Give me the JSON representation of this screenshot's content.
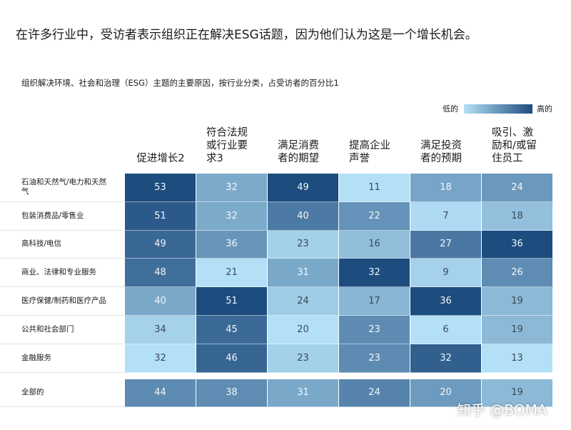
{
  "chart_data": {
    "type": "heatmap",
    "title": "在许多行业中，受访者表示组织正在解决ESG话题，因为他们认为这是一个增长机会。",
    "subtitle": "组织解决环境、社会和治理（ESG）主题的主要原因，按行业分类，占受访者的百分比1",
    "legend": {
      "low_label": "低的",
      "high_label": "高的"
    },
    "low_color": "#b3e0f7",
    "high_color": "#1d4c7e",
    "columns": [
      "促进增长2",
      "符合法规或行业要求3",
      "满足消费者的期望",
      "提高企业声誉",
      "满足投资者的预期",
      "吸引、激励和/或留住员工"
    ],
    "categories": [
      "石油和天然气/电力和天然气",
      "包装消费品/零售业",
      "高科技/电信",
      "商业、法律和专业服务",
      "医疗保健/制药和医疗产品",
      "公共和社会部门",
      "金融服务",
      "全部的"
    ],
    "values": [
      [
        53,
        32,
        49,
        11,
        18,
        24
      ],
      [
        51,
        32,
        40,
        22,
        7,
        18
      ],
      [
        49,
        36,
        23,
        16,
        27,
        36
      ],
      [
        48,
        21,
        31,
        32,
        9,
        26
      ],
      [
        40,
        51,
        24,
        17,
        36,
        19
      ],
      [
        34,
        45,
        20,
        23,
        6,
        19
      ],
      [
        32,
        46,
        23,
        23,
        32,
        13
      ],
      [
        44,
        38,
        31,
        24,
        20,
        19
      ]
    ],
    "watermark": "知乎 @BOMA"
  }
}
